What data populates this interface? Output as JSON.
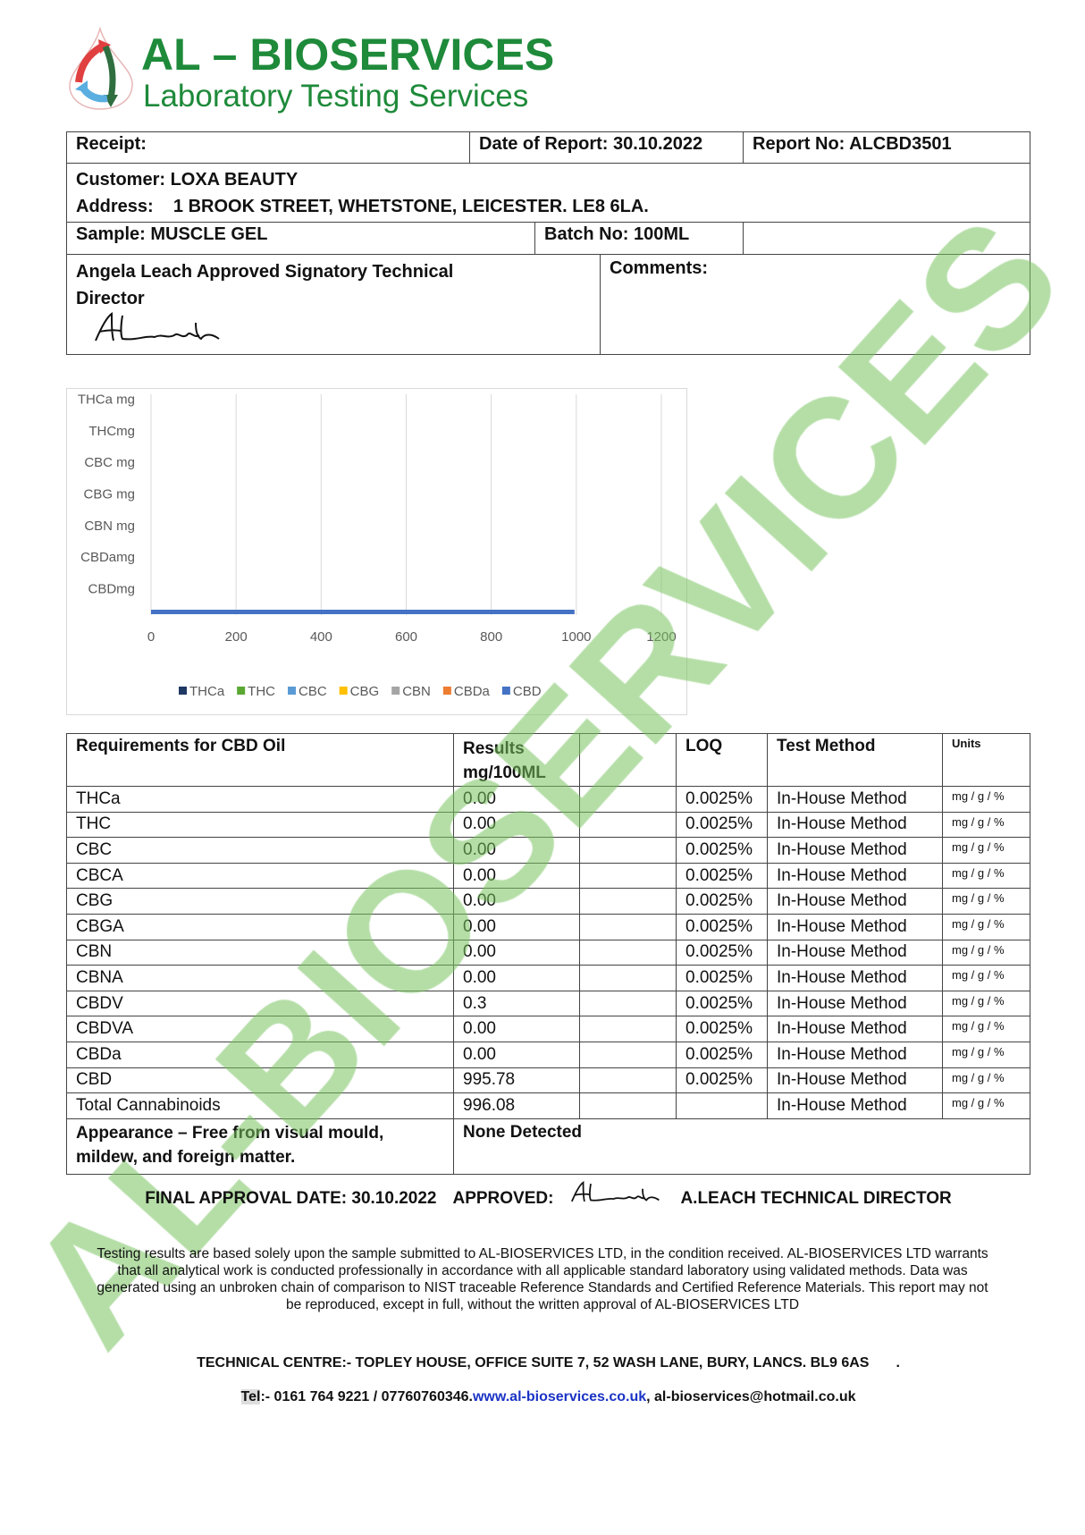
{
  "brand": {
    "title": "AL – BIOSERVICES",
    "subtitle": "Laboratory Testing Services",
    "color": "#1e8a3a"
  },
  "header": {
    "receipt": "Receipt:",
    "date_of_report": "Date of Report: 30.10.2022",
    "report_no": "Report No: ALCBD3501",
    "customer": "Customer: LOXA BEAUTY",
    "address": "Address:    1 BROOK STREET, WHETSTONE, LEICESTER. LE8 6LA.",
    "sample": "Sample: MUSCLE GEL",
    "batch_no": "Batch No: 100ML",
    "signatory": "Angela Leach Approved Signatory Technical",
    "signatory_line2": "Director",
    "signature": "ALeach",
    "comments": "Comments:"
  },
  "chart_data": {
    "type": "bar",
    "orientation": "horizontal",
    "categories": [
      "THCa mg",
      "THCmg",
      "CBC mg",
      "CBG mg",
      "CBN mg",
      "CBDamg",
      "CBDmg"
    ],
    "series": [
      {
        "name": "THCa",
        "color": "#1f3864",
        "values": [
          0,
          0,
          0,
          0,
          0,
          0,
          0
        ]
      },
      {
        "name": "THC",
        "color": "#5aa832",
        "values": [
          0,
          0,
          0,
          0,
          0,
          0,
          0
        ]
      },
      {
        "name": "CBC",
        "color": "#5b9bd5",
        "values": [
          0,
          0,
          0,
          0,
          0,
          0,
          0
        ]
      },
      {
        "name": "CBG",
        "color": "#ffc000",
        "values": [
          0,
          0,
          0,
          0,
          0,
          0,
          0
        ]
      },
      {
        "name": "CBN",
        "color": "#a5a5a5",
        "values": [
          0,
          0,
          0,
          0,
          0,
          0,
          0
        ]
      },
      {
        "name": "CBDa",
        "color": "#ed7d31",
        "values": [
          0,
          0,
          0,
          0,
          0,
          0,
          0
        ]
      },
      {
        "name": "CBD",
        "color": "#4472c4",
        "values": [
          0,
          0,
          0,
          0,
          0,
          0,
          995.78
        ]
      }
    ],
    "xlim": [
      0,
      1200
    ],
    "xticks": [
      "0",
      "200",
      "400",
      "600",
      "800",
      "1000",
      "1200"
    ],
    "grid": true,
    "legend": "bottom"
  },
  "results": {
    "headers": [
      "Requirements for CBD Oil",
      "Results",
      "mg/100ML",
      "",
      "LOQ",
      "Test Method",
      "Units"
    ],
    "rows": [
      [
        "THCa",
        "0.00",
        "0.0025%",
        "In-House Method",
        "mg / g / %"
      ],
      [
        "THC",
        "0.00",
        "0.0025%",
        "In-House Method",
        "mg / g / %"
      ],
      [
        "CBC",
        "0.00",
        "0.0025%",
        "In-House Method",
        "mg / g / %"
      ],
      [
        "CBCA",
        "0.00",
        "0.0025%",
        "In-House Method",
        "mg / g / %"
      ],
      [
        "CBG",
        "0.00",
        "0.0025%",
        "In-House Method",
        "mg / g / %"
      ],
      [
        "CBGA",
        "0.00",
        "0.0025%",
        "In-House Method",
        "mg / g / %"
      ],
      [
        "CBN",
        "0.00",
        "0.0025%",
        "In-House Method",
        "mg / g / %"
      ],
      [
        "CBNA",
        "0.00",
        "0.0025%",
        "In-House Method",
        "mg / g / %"
      ],
      [
        "CBDV",
        "0.3",
        "0.0025%",
        "In-House Method",
        "mg / g / %"
      ],
      [
        "CBDVA",
        "0.00",
        "0.0025%",
        "In-House Method",
        "mg / g / %"
      ],
      [
        "CBDa",
        "0.00",
        "0.0025%",
        "In-House Method",
        "mg / g / %"
      ],
      [
        "CBD",
        "995.78",
        "0.0025%",
        "In-House Method",
        "mg / g / %"
      ],
      [
        "Total Cannabinoids",
        "996.08",
        "",
        "In-House Method",
        "mg / g / %"
      ]
    ],
    "appearance_label": "Appearance – Free from visual mould,",
    "appearance_label2": "mildew, and foreign matter.",
    "appearance_value": "None Detected"
  },
  "approval": {
    "final_date": "FINAL APPROVAL DATE: 30.10.2022",
    "approved": "APPROVED:",
    "signatory": "A.LEACH TECHNICAL DIRECTOR"
  },
  "disclaimer": "Testing results are based solely upon the sample submitted to AL-BIOSERVICES LTD, in the condition received. AL-BIOSERVICES LTD warrants that all analytical work is conducted professionally in accordance with all applicable standard laboratory using validated methods. Data was generated using an unbroken chain of comparison to NIST traceable Reference Standards and Certified Reference Materials. This report may not be reproduced, except in full, without the written approval of AL-BIOSERVICES LTD",
  "footer": {
    "technical_centre": "TECHNICAL CENTRE:- TOPLEY HOUSE, OFFICE SUITE 7, 52 WASH LANE, BURY, LANCS. BL9 6AS",
    "dot": ".",
    "tel_label": "Tel",
    "tel": ":- 0161 764 9221 / 07760760346.",
    "website": "www.al-bioservices.co.uk",
    "email": ",  al-bioservices@hotmail.co.uk"
  },
  "watermark": "AL-BIOSERVICES"
}
